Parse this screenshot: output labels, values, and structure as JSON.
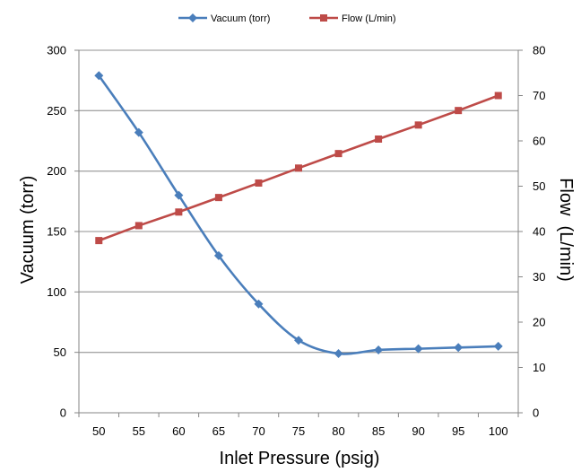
{
  "chart_data": {
    "type": "line",
    "x": [
      50,
      55,
      60,
      65,
      70,
      75,
      80,
      85,
      90,
      95,
      100
    ],
    "xlabel": "Inlet Pressure (psig)",
    "ylabel": "Vacuum (torr)",
    "y2label": "Flow  (L/min)",
    "ylim": [
      0,
      300
    ],
    "y_ticks": [
      0,
      50,
      100,
      150,
      200,
      250,
      300
    ],
    "y2lim": [
      0,
      80
    ],
    "y2_ticks": [
      0,
      10,
      20,
      30,
      40,
      50,
      60,
      70,
      80
    ],
    "grid": "horizontal",
    "legend": "top-center",
    "series": [
      {
        "name": "Vacuum (torr)",
        "axis": "left",
        "marker": "diamond",
        "color": "#4a7ebb",
        "smooth": true,
        "values": [
          279,
          232,
          180,
          130,
          90,
          60,
          49,
          52,
          53,
          54,
          55
        ]
      },
      {
        "name": "Flow (L/min)",
        "axis": "right",
        "marker": "square",
        "color": "#be4b48",
        "smooth": false,
        "values": [
          38,
          41.3,
          44.3,
          47.5,
          50.7,
          54,
          57.2,
          60.4,
          63.5,
          66.7,
          70
        ]
      }
    ]
  }
}
